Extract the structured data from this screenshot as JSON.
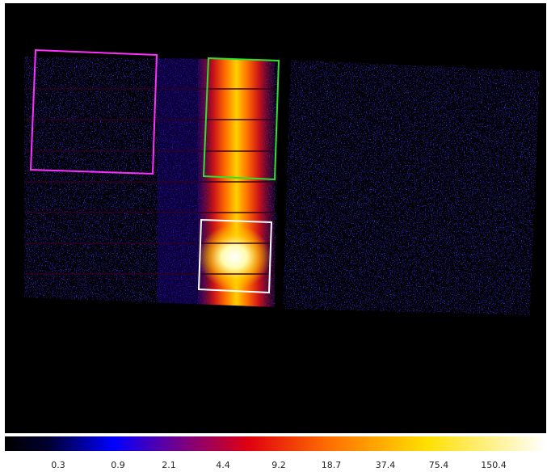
{
  "colorbar": {
    "labels": [
      "0.3",
      "0.9",
      "2.1",
      "4.4",
      "9.2",
      "18.7",
      "37.4",
      "75.4",
      "150.4"
    ]
  }
}
